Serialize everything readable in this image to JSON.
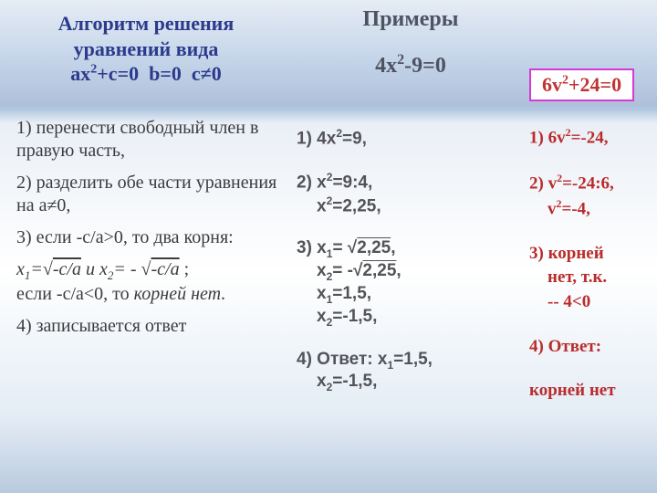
{
  "header": {
    "left_l1": "Алгоритм решения",
    "left_l2": "уравнений вида",
    "left_l3_a": "ах",
    "left_l3_b": "+с=0  b=0  c≠0",
    "mid_l1": "Примеры",
    "mid_l2_a": "4х",
    "mid_l2_b": "-9=0",
    "right_a": "6v",
    "right_b": "+24=0"
  },
  "left": {
    "p1": "1) перенести свободный член в правую часть,",
    "p2": "2) разделить обе части уравнения на а≠0,",
    "p3": "3) если -c/a>0, то два корня:",
    "p4_pre": "х",
    "p4_mid": "=√",
    "p4_arg": "-с/а",
    "p4_and": " и х",
    "p4_mid2": "= - √",
    "p4_tail": ";",
    "p4_l2a": "если -c/a<0, то ",
    "p4_l2b": "корней нет",
    "p4_l2c": ".",
    "p5": "4) записывается ответ"
  },
  "mid": {
    "s1a": "1) 4х",
    "s1b": "=9,",
    "s2a": "2) х",
    "s2b": "=9:4,",
    "s2c": "х",
    "s2d": "=2,25,",
    "s3a": "3) х",
    "s3b": "= √",
    "s3arg": "2,25",
    "s3comma": ",",
    "s3c": "х",
    "s3d": "= -√",
    "s3e": ",",
    "s3f": "х",
    "s3g": "=1,5,",
    "s3h": "х",
    "s3i": "=-1,5,",
    "s4a": "4) Ответ: х",
    "s4b": "=1,5,",
    "s4c": "х",
    "s4d": "=-1,5,"
  },
  "right": {
    "r1a": "1) 6v",
    "r1b": "=-24,",
    "r2a": "2) v",
    "r2b": "=-24:6,",
    "r2c": "v",
    "r2d": "=-4,",
    "r3a": "3) корней",
    "r3b": "нет, т.к.",
    "r3c": "-- 4<0",
    "r4a": "4) Ответ:",
    "r4b": "корней нет"
  },
  "style": {
    "accent_blue": "#2b3a8c",
    "accent_red": "#ba2b2b",
    "accent_gray": "#535358",
    "box_border": "#d63ad6"
  }
}
